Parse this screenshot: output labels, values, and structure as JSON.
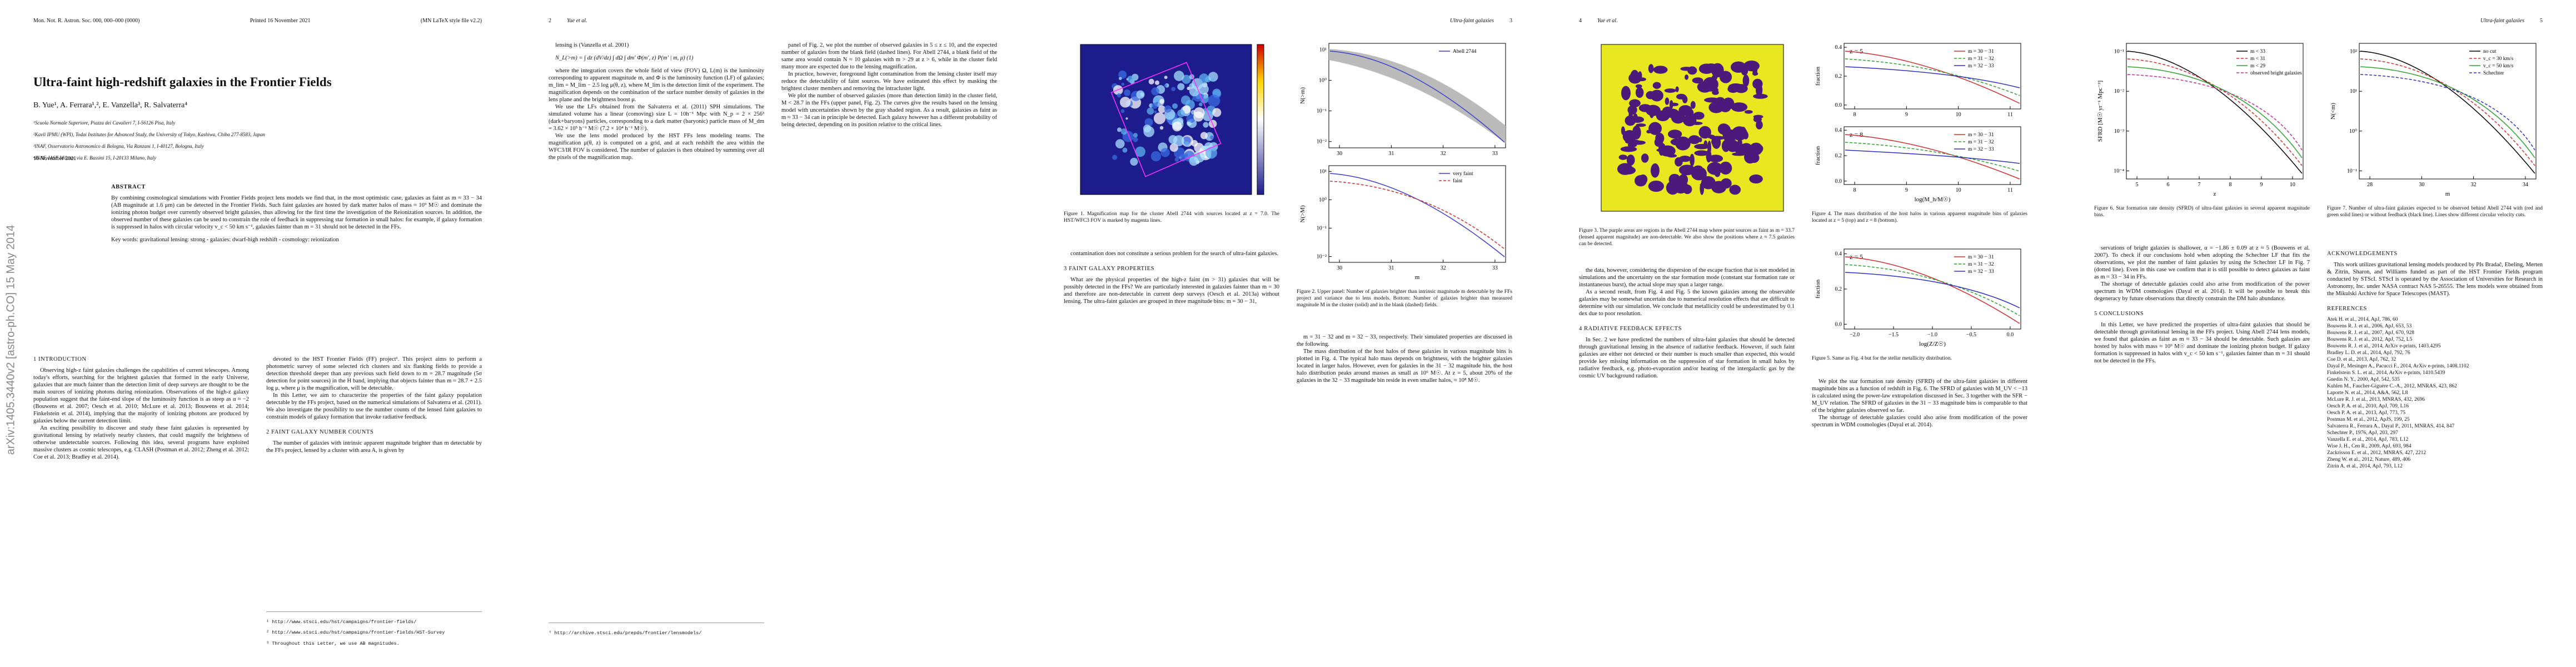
{
  "pages": [
    {
      "header": [
        "Mon. Not. R. Astron. Soc. 000, 000–000 (0000)",
        "Printed 16 November 2021",
        "(MN LaTeX style file v2.2)"
      ],
      "title": "Ultra-faint high-redshift galaxies in the Frontier Fields",
      "authors": "B. Yue¹, A. Ferrara¹,², E. Vanzella³, R. Salvaterra⁴",
      "affiliations": [
        "¹Scuola Normale Superiore, Piazza dei Cavalieri 7, I-56126 Pisa, Italy",
        "²Kavli IPMU (WPI), Todai Institutes for Advanced Study, the University of Tokyo, Kashiwa, Chiba 277-8583, Japan",
        "³INAF, Osservatorio Astronomico di Bologna, Via Ranzani 1, I-40127, Bologna, Italy",
        "⁴INAF, IASF Milano, via E. Bassini 15, I-20133 Milano, Italy"
      ],
      "date": "16 November 2021",
      "abstract_heading": "ABSTRACT",
      "abstract": "By combining cosmological simulations with Frontier Fields project lens models we find that, in the most optimistic case, galaxies as faint as m ≈ 33 − 34 (AB magnitude at 1.6 μm) can be detected in the Frontier Fields. Such faint galaxies are hosted by dark matter halos of mass ≈ 10⁹ M☉ and dominate the ionizing photon budget over currently observed bright galaxies, thus allowing for the first time the investigation of the Reionization sources. In addition, the observed number of these galaxies can be used to constrain the role of feedback in suppressing star formation in small halos: for example, if galaxy formation is suppressed in halos with circular velocity v_c < 50 km s⁻¹, galaxies fainter than m = 31 should not be detected in the FFs.",
      "keywords": "Key words: gravitational lensing: strong - galaxies: dwarf-high redshift - cosmology: reionization",
      "sidebar": "arXiv:1405.3440v2  [astro-ph.CO]  15 May 2014",
      "intro_heading": "1 INTRODUCTION",
      "intro": [
        "Observing high-z faint galaxies challenges the capabilities of current telescopes. Among today's efforts, searching for the brightest galaxies that formed in the early Universe, galaxies that are much fainter than the detection limit of deep surveys are thought to be the main sources of ionizing photons during reionization. Observations of the high-z galaxy population suggest that the faint-end slope of the luminosity function is as steep as α ≈ −2 (Bouwens et al. 2007; Oesch et al. 2010; McLure et al. 2013; Bouwens et al. 2014; Finkelstein et al. 2014), implying that the majority of ionizing photons are produced by galaxies below the current detection limit.",
        "An exciting possibility to discover and study these faint galaxies is represented by gravitational lensing by relatively nearby clusters, that could magnify the brightness of otherwise undetectable sources. Following this idea, several programs have exploited massive clusters as cosmic telescopes, e.g. CLASH (Postman et al. 2012; Zheng et al. 2012; Coe et al. 2013; Bradley et al. 2014)."
      ],
      "intro_cont": [
        "devoted to the HST Frontier Fields (FF) project¹. This project aims to perform a photometric survey of some selected rich clusters and six flanking fields to provide a detection threshold deeper than any previous such field down to m = 28.7 magnitude (5σ detection for point sources) in the H band, implying that objects fainter than m ≈ 28.7 + 2.5 log μ, where μ is the magnification, will be detectable.",
        "In this Letter, we aim to characterize the properties of the faint galaxy population detectable by the FFs project, based on the numerical simulations of Salvaterra et al. (2011). We also investigate the possibility to use the number counts of the lensed faint galaxies to constrain models of galaxy formation that invoke radiative feedback."
      ],
      "section_heading": "2 FAINT GALAXY NUMBER COUNTS",
      "section_text": [
        "The number of galaxies with intrinsic apparent magnitude brighter than m detectable by the FFs project, lensed by a cluster with area A, is given by"
      ],
      "footnotes": [
        "¹ http://www.stsci.edu/hst/campaigns/frontier-fields/",
        "² http://www.stsci.edu/hst/campaigns/frontier-fields/HST-Survey",
        "³ Throughout this Letter, we use AB magnitudes."
      ]
    },
    {
      "header": [
        "2",
        "Yue et al."
      ],
      "left_a": [
        "lensing is (Vanzella et al. 2001)"
      ],
      "equation": "N_L(>m) = ∫ dz (dV/dz) ∫ dΩ ∫ dm′ Φ(m′, z) P(m′ | m, μ)      (1)",
      "left_b": [
        "where the integration covers the whole field of view (FOV) Ω, L(m) is the luminosity corresponding to apparent magnitude m, and Φ is the luminosity function (LF) of galaxies; m_lim = M_lim − 2.5 log μ(θ, z), where M_lim is the detection limit of the experiment. The magnification depends on the combination of the surface number density of galaxies in the lens plane and the brightness boost μ.",
        "We use the LFs obtained from the Salvaterra et al. (2011) SPH simulations. The simulated volume has a linear (comoving) size L = 10h⁻¹ Mpc with N_p = 2 × 256³ (dark+baryons) particles, corresponding to a dark matter (baryonic) particle mass of M_dm = 3.62 × 10⁵ h⁻¹ M☉ (7.2 × 10⁴ h⁻¹ M☉).",
        "We use the lens model produced by the HST FFs lens modeling teams. The magnification μ(θ, z) is computed on a grid, and at each redshift the area within the WFC3/IR FOV is considered. The number of galaxies is then obtained by summing over all the pixels of the magnification map."
      ],
      "right": [
        "panel of Fig. 2, we plot the number of observed galaxies in 5 ≤ z ≤ 10, and the expected number of galaxies from the blank field (dashed lines). For Abell 2744, a blank field of the same area would contain N ≈ 10 galaxies with m > 29 at z > 6, while in the cluster field many more are expected due to the lensing magnification.",
        "In practice, however, foreground light contamination from the lensing cluster itself may reduce the detectability of faint sources. We have estimated this effect by masking the brightest cluster members and removing the intracluster light.",
        "We plot the number of observed galaxies (more than detection limit) in the cluster field, M < 28.7 in the FFs (upper panel, Fig. 2). The curves give the results based on the lensing model with uncertainties shown by the gray shaded region. As a result, galaxies as faint as m ≈ 33 − 34 can in principle be detected. Each galaxy however has a different probability of being detected, depending on its position relative to the critical lines."
      ],
      "footnotes": [
        "⁴ http://archive.stsci.edu/prepds/frontier/lensmodels/"
      ]
    },
    {
      "header": [
        "Ultra-faint galaxies",
        "3"
      ],
      "figures": [
        {
          "caption": "Figure 1. Magnification map for the cluster Abell 2744 with sources located at z = 7.0. The HST/WFC3 FOV is marked by magenta lines."
        },
        {
          "caption": "Figure 2. Upper panel: Number of galaxies brighter than intrinsic magnitude m detectable by the FFs project and variance due to lens models. Bottom: Number of galaxies brighter than measured magnitude M in the cluster (solid) and in the blank (dashed) fields.",
          "panels": [
            {
              "xticks": [
                "30",
                "31",
                "32",
                "33"
              ],
              "yticks": [
                "10⁻²",
                "10⁻¹",
                "10⁰",
                "10¹"
              ],
              "ylabel": "N(>m)",
              "legend": [
                {
                  "name": "Abell 2744",
                  "color": "#3c3cc8"
                }
              ]
            },
            {
              "xticks": [
                "30",
                "31",
                "32",
                "33"
              ],
              "yticks": [
                "10⁻²",
                "10⁻¹",
                "10⁰",
                "10¹"
              ],
              "xlabel": "m",
              "ylabel": "N(>M)",
              "legend": [
                {
                  "name": "very faint",
                  "color": "#3c3cc8"
                },
                {
                  "name": "faint",
                  "color": "#d03030"
                }
              ]
            }
          ]
        }
      ],
      "left": [
        "contamination does not constitute a serious problem for the search of ultra-faint galaxies."
      ],
      "heading": "3 FAINT GALAXY PROPERTIES",
      "left_b": [
        "What are the physical properties of the high-z faint (m > 31) galaxies that will be possibly detected in the FFs? We are particularly interested in galaxies fainter than m = 30 and therefore are non-detectable in current deep surveys (Oesch et al. 2013a) without lensing. The ultra-faint galaxies are grouped in three magnitude bins: m = 30 − 31,"
      ],
      "right": [
        "m = 31 − 32 and m = 32 − 33, respectively. Their simulated properties are discussed in the following.",
        "The mass distribution of the host halos of these galaxies in various magnitude bins is plotted in Fig. 4. The typical halo mass depends on brightness, with the brighter galaxies located in larger halos. However, even for galaxies in the 31 − 32 magnitude bin, the host halo distribution peaks around masses as small as 10⁹ M☉. At z = 5, about 20% of the galaxies in the 32 − 33 magnitude bin reside in even smaller halos, ≈ 10⁸ M☉."
      ]
    },
    {
      "header": [
        "4",
        "Yue et al."
      ],
      "figures": [
        {
          "caption": "Figure 3. The purple areas are regions in the Abell 2744 map where point sources as faint as m = 33.7 (lensed apparent magnitude) are non-detectable. We also show the positions where z ≈ 7.5 galaxies can be detected."
        },
        {
          "caption": "Figure 4. The mass distribution of the host halos in various apparent magnitude bins of galaxies located at z = 5 (top) and z = 8 (bottom).",
          "panels": [
            {
              "label": "z = 5",
              "xticks": [
                "8",
                "9",
                "10",
                "11"
              ],
              "yticks": [
                "0.0",
                "0.2",
                "0.4"
              ],
              "ylabel": "fraction",
              "legend": [
                {
                  "name": "m = 30 − 31",
                  "color": "#d03030"
                },
                {
                  "name": "m = 31 − 32",
                  "color": "#30a030"
                },
                {
                  "name": "m = 32 − 33",
                  "color": "#3030c0"
                }
              ]
            },
            {
              "label": "z = 8",
              "xticks": [
                "8",
                "9",
                "10",
                "11"
              ],
              "yticks": [
                "0.0",
                "0.2",
                "0.4"
              ],
              "xlabel": "log(M_h/M☉)",
              "ylabel": "fraction",
              "legend": [
                {
                  "name": "m = 30 − 31",
                  "color": "#d03030"
                },
                {
                  "name": "m = 31 − 32",
                  "color": "#30a030"
                },
                {
                  "name": "m = 32 − 33",
                  "color": "#3030c0"
                }
              ]
            }
          ]
        },
        {
          "caption": "Figure 5. Same as Fig. 4 but for the stellar metallicity distribution.",
          "panels": [
            {
              "label": "z = 5",
              "xticks": [
                "−2.0",
                "−1.5",
                "−1.0",
                "−0.5",
                "0.0"
              ],
              "yticks": [
                "0.0",
                "0.2",
                "0.4"
              ],
              "xlabel": "log(Z/Z☉)",
              "ylabel": "fraction",
              "legend": [
                {
                  "name": "m = 30 − 31",
                  "color": "#d03030"
                },
                {
                  "name": "m = 31 − 32",
                  "color": "#30a030"
                },
                {
                  "name": "m = 32 − 33",
                  "color": "#3030c0"
                }
              ]
            }
          ]
        }
      ],
      "left": [
        "the data, however, considering the dispersion of the escape fraction that is not modeled in simulations and the uncertainty on the star formation mode (constant star formation rate or instantaneous burst), the actual slope may span a larger range.",
        "As a second result, from Fig. 4 and Fig. 5 the known galaxies among the observable galaxies may be somewhat uncertain due to numerical resolution effects that are difficult to determine with our simulation. We conclude that metallicity could be underestimated by 0.1 dex due to poor resolution."
      ],
      "heading": "4 RADIATIVE FEEDBACK EFFECTS",
      "left_b": [
        "In Sec. 2 we have predicted the numbers of ultra-faint galaxies that should be detected through gravitational lensing in the absence of radiative feedback. However, if such faint galaxies are either not detected or their number is much smaller than expected, this would provide key missing information on the suppression of star formation in small halos by radiative feedback, e.g. photo-evaporation and/or heating of the intergalactic gas by the cosmic UV background radiation."
      ],
      "right": [
        "We plot the star formation rate density (SFRD) of the ultra-faint galaxies in different magnitude bins as a function of redshift in Fig. 6. The SFRD of galaxies with M_UV < −13 is calculated using the power-law extrapolation discussed in Sec. 3 together with the SFR − M_UV relation. The SFRD of galaxies in the 31 − 33 magnitude bins is comparable to that of the brighter galaxies observed so far.",
        "The shortage of detectable galaxies could also arise from modification of the power spectrum in WDM cosmologies (Dayal et al. 2014)."
      ]
    },
    {
      "header": [
        "Ultra-faint galaxies",
        "5"
      ],
      "figures": [
        {
          "caption": "Figure 6. Star formation rate density (SFRD) of ultra-faint galaxies in several apparent magnitude bins.",
          "panels": [
            {
              "xticks": [
                "5",
                "6",
                "7",
                "8",
                "9",
                "10"
              ],
              "yticks": [
                "10⁻⁴",
                "10⁻³",
                "10⁻²",
                "10⁻¹"
              ],
              "xlabel": "z",
              "ylabel": "SFRD [M☉ yr⁻¹ Mpc⁻³]",
              "legend": [
                {
                  "name": "m < 33",
                  "color": "#000000"
                },
                {
                  "name": "m < 31",
                  "color": "#d03030"
                },
                {
                  "name": "m < 29",
                  "color": "#30a030"
                },
                {
                  "name": "observed bright galaxies",
                  "color": "#c03090"
                }
              ]
            }
          ]
        },
        {
          "caption": "Figure 7. Number of ultra-faint galaxies expected to be observed behind Abell 2744 with (red and green solid lines) or without feedback (black line). Lines show different circular velocity cuts.",
          "panels": [
            {
              "xticks": [
                "28",
                "30",
                "32",
                "34"
              ],
              "yticks": [
                "10⁻¹",
                "10⁰",
                "10¹",
                "10²"
              ],
              "xlabel": "m",
              "ylabel": "N(<m)",
              "legend": [
                {
                  "name": "no cut",
                  "color": "#000000"
                },
                {
                  "name": "v_c = 30 km/s",
                  "color": "#d03030"
                },
                {
                  "name": "v_c = 50 km/s",
                  "color": "#30a030"
                },
                {
                  "name": "Schechter",
                  "color": "#3030c0"
                }
              ]
            }
          ]
        }
      ],
      "left": [
        "servations of bright galaxies is shallower, α = −1.86 ± 0.09 at z ≈ 5 (Bouwens et al. 2007). To check if our conclusions hold when adopting the Schechter LF that fits the observations, we plot the number of faint galaxies by using the Schechter LF in Fig. 7 (dotted line). Even in this case we confirm that it is still possible to detect galaxies as faint as m ≈ 33 − 34 in FFs.",
        "The shortage of detectable galaxies could also arise from modification of the power spectrum in WDM cosmologies (Dayal et al. 2014). It will be possible to break this degeneracy by future observations that directly constrain the DM halo abundance."
      ],
      "heading": "5 CONCLUSIONS",
      "left_b": [
        "In this Letter, we have predicted the properties of ultra-faint galaxies that should be detectable through gravitational lensing in the FFs project. Using Abell 2744 lens models, we found that galaxies as faint as m ≈ 33 − 34 should be detectable. Such galaxies are hosted by halos with mass ≈ 10⁹ M☉ and dominate the ionizing photon budget. If galaxy formation is suppressed in halos with v_c < 50 km s⁻¹, galaxies fainter than m = 31 should not be detected in the FFs."
      ],
      "ack_heading": "ACKNOWLEDGEMENTS",
      "ack": [
        "This work utilizes gravitational lensing models produced by PIs Bradač, Ebeling, Merten & Zitrin, Sharon, and Williams funded as part of the HST Frontier Fields program conducted by STScI. STScI is operated by the Association of Universities for Research in Astronomy, Inc. under NASA contract NAS 5-26555. The lens models were obtained from the Mikulski Archive for Space Telescopes (MAST)."
      ],
      "ref_heading": "REFERENCES",
      "refs": [
        "Atek H. et al., 2014, ApJ, 786, 60",
        "Bouwens R. J. et al., 2006, ApJ, 653, 53",
        "Bouwens R. J. et al., 2007, ApJ, 670, 928",
        "Bouwens R. J. et al., 2012, ApJ, 752, L5",
        "Bouwens R. J. et al., 2014, ArXiv e-prints, 1403.4295",
        "Bradley L. D. et al., 2014, ApJ, 792, 76",
        "Coe D. et al., 2013, ApJ, 762, 32",
        "Dayal P., Mesinger A., Pacucci F., 2014, ArXiv e-prints, 1408.1102",
        "Finkelstein S. L. et al., 2014, ArXiv e-prints, 1410.5439",
        "Gnedin N. Y., 2000, ApJ, 542, 535",
        "Kuhlen M., Faucher-Giguère C.-A., 2012, MNRAS, 423, 862",
        "Laporte N. et al., 2014, A&A, 562, L8",
        "McLure R. J. et al., 2013, MNRAS, 432, 2696",
        "Oesch P. A. et al., 2010, ApJ, 709, L16",
        "Oesch P. A. et al., 2013, ApJ, 773, 75",
        "Postman M. et al., 2012, ApJS, 199, 25",
        "Salvaterra R., Ferrara A., Dayal P., 2011, MNRAS, 414, 847",
        "Schechter P., 1976, ApJ, 203, 297",
        "Vanzella E. et al., 2014, ApJ, 783, L12",
        "Wise J. H., Cen R., 2009, ApJ, 693, 984",
        "Zackrisson E. et al., 2012, MNRAS, 427, 2212",
        "Zheng W. et al., 2012, Nature, 489, 406",
        "Zitrin A. et al., 2014, ApJ, 793, L12"
      ]
    }
  ]
}
